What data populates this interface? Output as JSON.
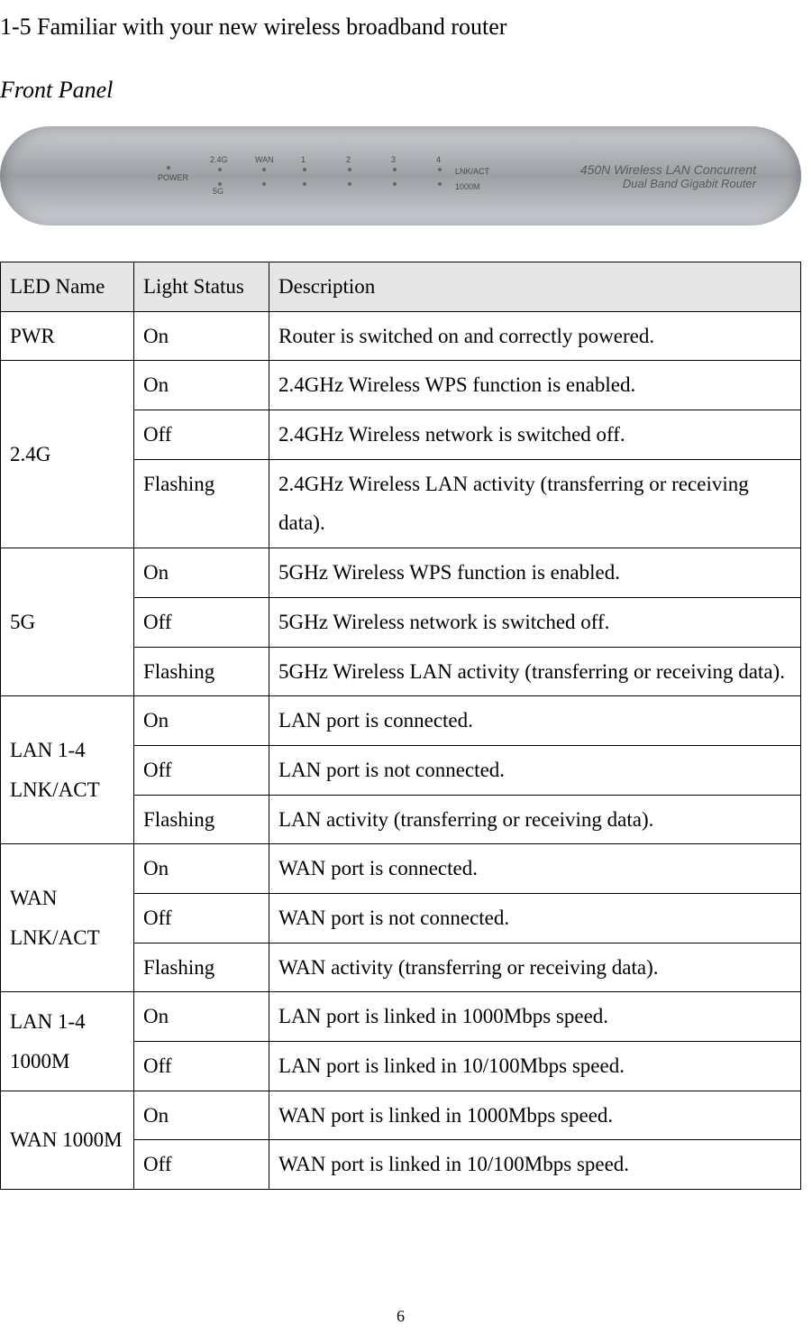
{
  "section_title": "1-5 Familiar with your new wireless broadband router",
  "subtitle": "Front Panel",
  "router": {
    "power": "POWER",
    "g24": "2.4G",
    "g5": "5G",
    "wan": "WAN",
    "n1": "1",
    "n2": "2",
    "n3": "3",
    "n4": "4",
    "lnkact": "LNK/ACT",
    "m1000": "1000M",
    "model_line1": "450N Wireless LAN Concurrent",
    "model_line2": "Dual Band Gigabit Router"
  },
  "table": {
    "headers": {
      "led": "LED Name",
      "light": "Light Status",
      "desc": "Description"
    },
    "rows": [
      {
        "led": "PWR",
        "led_rowspan": 1,
        "light": "On",
        "desc": "Router is switched on and correctly powered."
      },
      {
        "led": "2.4G",
        "led_rowspan": 3,
        "light": "On",
        "desc": "2.4GHz Wireless WPS function is enabled."
      },
      {
        "light": "Off",
        "desc": "2.4GHz Wireless network is switched off."
      },
      {
        "light": "Flashing",
        "desc": "2.4GHz Wireless LAN activity (transferring or receiving data)."
      },
      {
        "led": "5G",
        "led_rowspan": 3,
        "light": "On",
        "desc": "5GHz Wireless WPS function is enabled."
      },
      {
        "light": "Off",
        "desc": "5GHz Wireless network is switched off."
      },
      {
        "light": "Flashing",
        "desc": "5GHz Wireless LAN activity (transferring or receiving data)."
      },
      {
        "led": "LAN 1-4 LNK/ACT",
        "led_rowspan": 3,
        "light": "On",
        "desc": "LAN port is connected."
      },
      {
        "light": "Off",
        "desc": "LAN port is not connected."
      },
      {
        "light": "Flashing",
        "desc": "LAN activity (transferring or receiving data)."
      },
      {
        "led": "WAN LNK/ACT",
        "led_rowspan": 3,
        "light": "On",
        "desc": "WAN port is connected."
      },
      {
        "light": "Off",
        "desc": "WAN port is not connected."
      },
      {
        "light": "Flashing",
        "desc": "WAN activity (transferring or receiving data)."
      },
      {
        "led": "LAN 1-4 1000M",
        "led_rowspan": 2,
        "light": "On",
        "desc": "LAN port is linked in 1000Mbps speed."
      },
      {
        "light": "Off",
        "desc": "LAN port is linked in 10/100Mbps speed."
      },
      {
        "led": "WAN 1000M",
        "led_rowspan": 2,
        "light": "On",
        "desc": "WAN port is linked in 1000Mbps speed."
      },
      {
        "light": "Off",
        "desc": "WAN port is linked in 10/100Mbps speed."
      }
    ]
  },
  "page_number": "6"
}
